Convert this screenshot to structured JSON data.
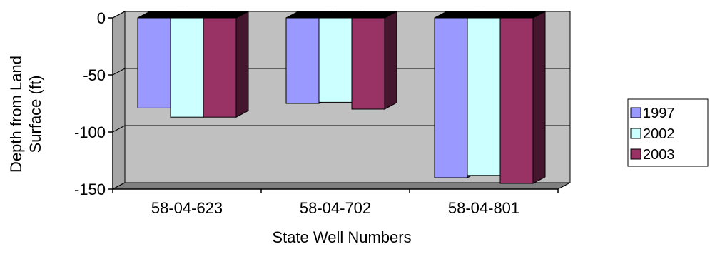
{
  "chart_data": {
    "type": "bar",
    "title": "",
    "xlabel": "State Well Numbers",
    "ylabel_lines": [
      "Depth from Land",
      "Surface (ft)"
    ],
    "categories": [
      "58-04-623",
      "58-04-702",
      "58-04-801"
    ],
    "series": [
      {
        "name": "1997",
        "values": [
          -79,
          -75,
          -140
        ],
        "color": "#9999ff"
      },
      {
        "name": "2002",
        "values": [
          -87,
          -74,
          -138
        ],
        "color": "#ccffff"
      },
      {
        "name": "2003",
        "values": [
          -87,
          -80,
          -145
        ],
        "color": "#993366"
      }
    ],
    "ylim": [
      -150,
      0
    ],
    "yticks": [
      0,
      -50,
      -100,
      -150
    ],
    "grid": true,
    "legend_position": "right",
    "plot_background": "#c0c0c0"
  }
}
